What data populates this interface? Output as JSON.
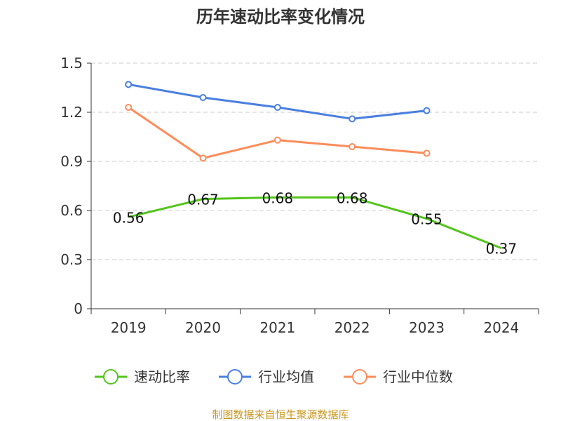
{
  "chart_data": {
    "type": "line",
    "title": "历年速动比率变化情况",
    "categories": [
      "2019",
      "2020",
      "2021",
      "2022",
      "2023",
      "2024"
    ],
    "ylim": [
      0,
      1.5
    ],
    "yticks": [
      "0",
      "0.3",
      "0.6",
      "0.9",
      "1.2",
      "1.5"
    ],
    "grid": true,
    "legend_position": "bottom",
    "series": [
      {
        "name": "速动比率",
        "color": "#52c41a",
        "values": [
          0.56,
          0.67,
          0.68,
          0.68,
          0.55,
          0.37
        ],
        "labels": [
          "0.56",
          "0.67",
          "0.68",
          "0.68",
          "0.55",
          "0.37"
        ]
      },
      {
        "name": "行业均值",
        "color": "#4a7fe0",
        "values": [
          1.37,
          1.29,
          1.23,
          1.16,
          1.21,
          null
        ]
      },
      {
        "name": "行业中位数",
        "color": "#ff8c5a",
        "values": [
          1.23,
          0.92,
          1.03,
          0.99,
          0.95,
          null
        ]
      }
    ]
  },
  "source": "制图数据来自恒生聚源数据库"
}
